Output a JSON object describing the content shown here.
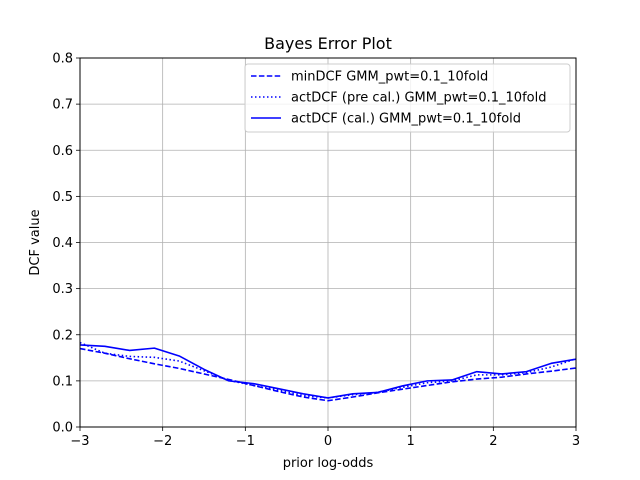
{
  "chart_data": {
    "type": "line",
    "title": "Bayes Error Plot",
    "xlabel": "prior log-odds",
    "ylabel": "DCF value",
    "xlim": [
      -3,
      3
    ],
    "ylim": [
      0,
      0.8
    ],
    "xticks": [
      -3,
      -2,
      -1,
      0,
      1,
      2,
      3
    ],
    "xtick_labels": [
      "−3",
      "−2",
      "−1",
      "0",
      "1",
      "2",
      "3"
    ],
    "yticks": [
      0.0,
      0.1,
      0.2,
      0.3,
      0.4,
      0.5,
      0.6,
      0.7,
      0.8
    ],
    "ytick_labels": [
      "0.0",
      "0.1",
      "0.2",
      "0.3",
      "0.4",
      "0.5",
      "0.6",
      "0.7",
      "0.8"
    ],
    "grid": true,
    "legend_position": "top-right",
    "line_color": "#0000ff",
    "series": [
      {
        "name": "minDCF GMM_pwt=0.1_10fold",
        "style": "dashed",
        "x": [
          -3,
          -2.7,
          -2.4,
          -2.1,
          -1.8,
          -1.5,
          -1.2,
          -0.9,
          -0.6,
          -0.3,
          0,
          0.3,
          0.6,
          0.9,
          1.2,
          1.5,
          1.8,
          2.1,
          2.4,
          2.7,
          3
        ],
        "y": [
          0.17,
          0.16,
          0.148,
          0.137,
          0.127,
          0.115,
          0.103,
          0.09,
          0.077,
          0.065,
          0.057,
          0.065,
          0.074,
          0.082,
          0.09,
          0.098,
          0.104,
          0.108,
          0.115,
          0.121,
          0.128
        ]
      },
      {
        "name": "actDCF (pre cal.) GMM_pwt=0.1_10fold",
        "style": "dotted",
        "x": [
          -3,
          -2.7,
          -2.4,
          -2.1,
          -1.8,
          -1.5,
          -1.2,
          -0.9,
          -0.6,
          -0.3,
          0,
          0.3,
          0.6,
          0.9,
          1.2,
          1.5,
          1.8,
          2.1,
          2.4,
          2.7,
          3
        ],
        "y": [
          0.183,
          0.16,
          0.153,
          0.151,
          0.143,
          0.122,
          0.101,
          0.09,
          0.08,
          0.068,
          0.063,
          0.07,
          0.075,
          0.086,
          0.096,
          0.1,
          0.113,
          0.113,
          0.118,
          0.13,
          0.148
        ]
      },
      {
        "name": "actDCF (cal.) GMM_pwt=0.1_10fold",
        "style": "solid",
        "x": [
          -3,
          -2.7,
          -2.4,
          -2.1,
          -1.8,
          -1.5,
          -1.2,
          -0.9,
          -0.6,
          -0.3,
          0,
          0.3,
          0.6,
          0.9,
          1.2,
          1.5,
          1.8,
          2.1,
          2.4,
          2.7,
          3
        ],
        "y": [
          0.178,
          0.175,
          0.166,
          0.171,
          0.154,
          0.125,
          0.1,
          0.094,
          0.083,
          0.072,
          0.063,
          0.072,
          0.075,
          0.089,
          0.1,
          0.102,
          0.12,
          0.115,
          0.12,
          0.138,
          0.147
        ]
      }
    ]
  }
}
